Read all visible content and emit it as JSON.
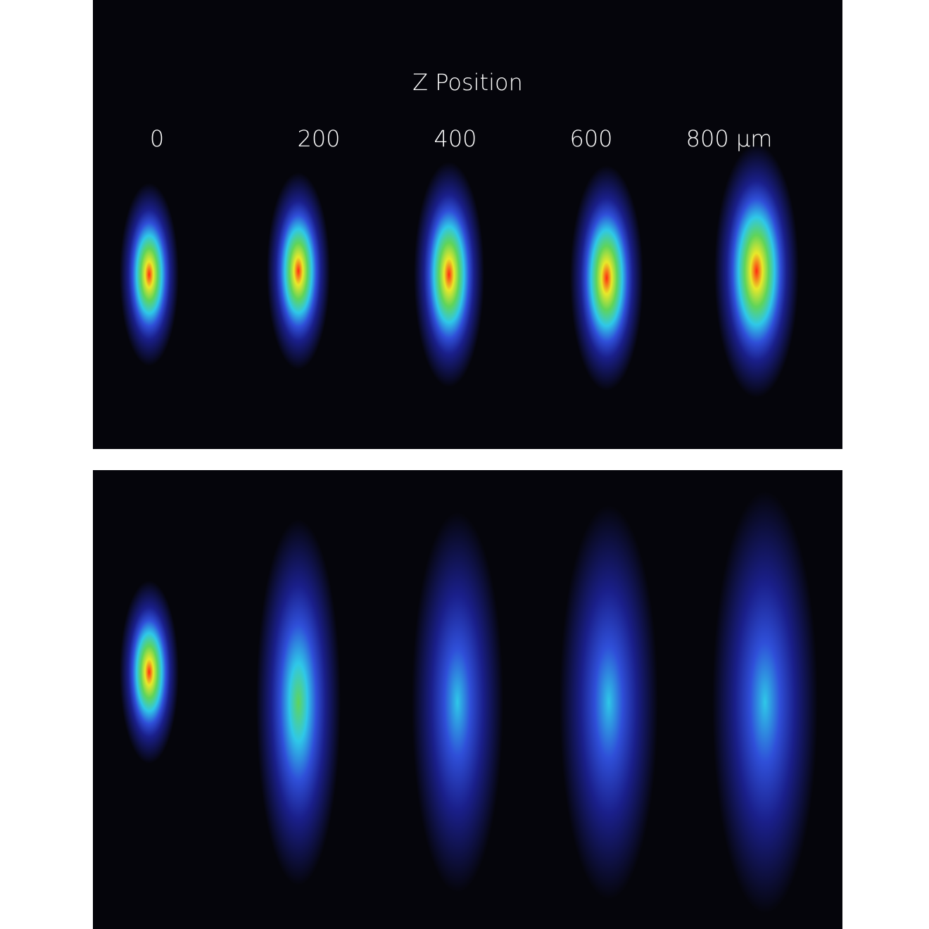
{
  "title": "Z Position",
  "z_labels": [
    "0",
    "200",
    "400",
    "600",
    "800 µm"
  ],
  "colormap": [
    "#05050b",
    "#1a1f8a",
    "#2f4fd8",
    "#2fc8e8",
    "#5fd45a",
    "#e8e82a",
    "#ff2a10"
  ]
}
